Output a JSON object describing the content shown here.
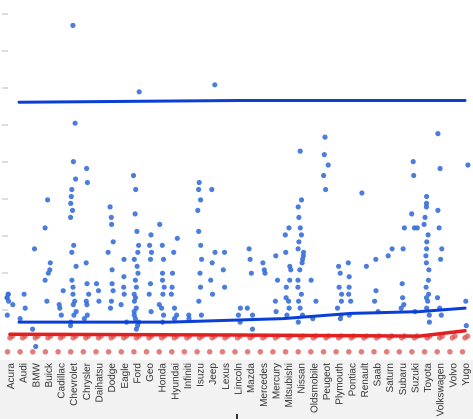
{
  "chart_data": {
    "type": "scatter",
    "title": "",
    "xlabel": "",
    "ylabel": "",
    "grid": false,
    "legend": "none",
    "x_axis": "categorical",
    "categories": [
      "Acura",
      "Audi",
      "BMW",
      "Buick",
      "Cadillac",
      "Chevrolet",
      "Chrysler",
      "Daihatsu",
      "Dodge",
      "Eagle",
      "Ford",
      "Geo",
      "Honda",
      "Hyundai",
      "Infiniti",
      "Isuzu",
      "Jeep",
      "Lexus",
      "Lincoln",
      "Mazda",
      "Mercedes",
      "Mercury",
      "Mitsubishi",
      "Nissan",
      "Oldsmobile",
      "Peugeot",
      "Plymouth",
      "Pontiac",
      "Renault",
      "Saab",
      "Saturn",
      "Subaru",
      "Suzuki",
      "Toyota",
      "Volkswagen",
      "Volvo",
      "Yugo"
    ],
    "ylim": [
      0,
      100
    ],
    "colors": {
      "points": "#3a6fd8",
      "lower_points": "#d9534f",
      "upper_band_line": "#0a3fd6",
      "median_line": "#0a3fd6",
      "lower_band_line": "#e32020",
      "axis": "#bbbbbb"
    },
    "series": [
      {
        "values": {
          "Acura": [
            17,
            18,
            17,
            16,
            18,
            12,
            15
          ],
          "Audi": [
            14,
            18,
            11
          ],
          "BMW": [
            8,
            3,
            31
          ],
          "Buick": [
            24,
            45,
            16,
            27,
            22,
            25,
            37
          ],
          "Cadillac": [
            14,
            15,
            19,
            12
          ],
          "Chevrolet": [
            95,
            67,
            56,
            51,
            48,
            46,
            44,
            42,
            40,
            32,
            30,
            26,
            22,
            20,
            18,
            16,
            15,
            13,
            12,
            10,
            9
          ],
          "Chrysler": [
            54,
            50,
            27,
            21,
            18,
            15,
            11,
            12,
            16
          ],
          "Daihatsu": [
            21,
            19,
            16
          ],
          "Dodge": [
            43,
            40,
            38,
            33,
            30,
            25,
            21,
            19,
            16,
            14
          ],
          "Eagle": [
            28,
            23,
            18,
            15,
            20,
            10
          ],
          "Ford": [
            76,
            52,
            48,
            41,
            36,
            32,
            30,
            28,
            26,
            24,
            22,
            20,
            18,
            16,
            14,
            12,
            11,
            10,
            9,
            8,
            13,
            17
          ],
          "Geo": [
            35,
            32,
            30,
            28,
            21,
            18,
            13
          ],
          "Honda": [
            38,
            32,
            28,
            24,
            22,
            20,
            18,
            15,
            14,
            12,
            10
          ],
          "Hyundai": [
            34,
            30,
            24,
            20,
            18,
            14,
            12,
            11
          ],
          "Infiniti": [
            12,
            11
          ],
          "Isuzu": [
            50,
            48,
            45,
            42,
            36,
            32,
            28,
            24,
            20,
            16,
            12
          ],
          "Jeep": [
            78,
            48,
            30,
            27,
            22,
            18
          ],
          "Lexus": [
            30,
            25,
            20
          ],
          "Lincoln": [
            12,
            14,
            10
          ],
          "Mazda": [
            31,
            24,
            28,
            14,
            8,
            12
          ],
          "Mercedes": [
            25,
            24,
            27
          ],
          "Mercury": [
            29,
            22,
            16,
            13
          ],
          "Mitsubishi": [
            37,
            35,
            30,
            26,
            25,
            22,
            20,
            17,
            16,
            14,
            12
          ],
          "Nissan": [
            59,
            45,
            43,
            40,
            37,
            35,
            33,
            31,
            29,
            27,
            25,
            22,
            20,
            18,
            16,
            14,
            12,
            10,
            30,
            28
          ],
          "Oldsmobile": [
            22,
            16,
            11
          ],
          "Peugeot": [
            63,
            58,
            55,
            52,
            48
          ],
          "Plymouth": [
            26,
            24,
            20,
            18,
            16,
            14,
            12,
            11
          ],
          "Pontiac": [
            27,
            23,
            20,
            18,
            16,
            12
          ],
          "Renault": [
            47,
            26
          ],
          "Saab": [
            19,
            16,
            13,
            28
          ],
          "Saturn": [
            31,
            29
          ],
          "Subaru": [
            31,
            21,
            17,
            15,
            14,
            37
          ],
          "Suzuki": [
            56,
            52,
            41,
            37,
            37,
            13
          ],
          "Toyota": [
            46,
            44,
            43,
            40,
            38,
            35,
            33,
            31,
            29,
            27,
            25,
            22,
            20,
            18,
            17,
            16,
            14,
            12,
            10
          ],
          "Volkswagen": [
            64,
            54,
            42,
            37,
            31,
            28,
            17,
            14,
            12
          ],
          "Volvo": [],
          "Yugo": [
            55,
            16,
            9
          ]
        }
      }
    ],
    "lower_cluster_y": [
      1.5,
      5.5,
      6
    ],
    "band_lines": {
      "upper": [
        [
          0.02,
          73
        ],
        [
          0.5,
          73.5
        ],
        [
          1,
          73.5
        ]
      ],
      "median": [
        [
          0.02,
          10
        ],
        [
          0.35,
          10
        ],
        [
          0.6,
          11
        ],
        [
          0.75,
          12.5
        ],
        [
          0.9,
          13
        ],
        [
          1,
          14
        ]
      ],
      "lower": [
        [
          0.0,
          6.5
        ],
        [
          0.5,
          6.3
        ],
        [
          0.9,
          6
        ],
        [
          1,
          7.5
        ]
      ]
    }
  }
}
